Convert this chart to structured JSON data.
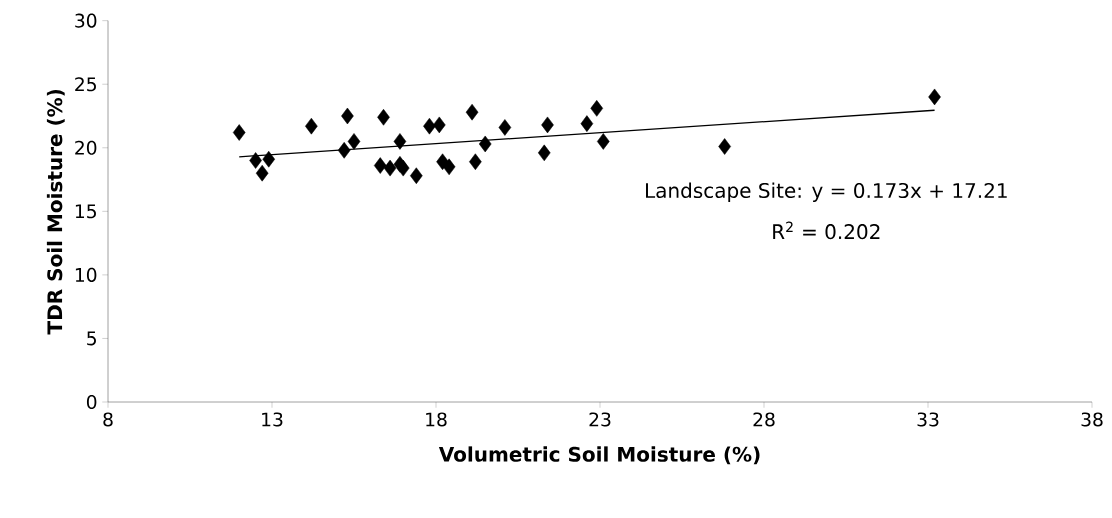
{
  "chart_data": {
    "type": "scatter",
    "xlabel": "Volumetric Soil Moisture (%)",
    "ylabel": "TDR Soil Moisture (%)",
    "xlim": [
      8,
      38
    ],
    "ylim": [
      0,
      30
    ],
    "xticks": [
      8,
      13,
      18,
      23,
      28,
      33,
      38
    ],
    "yticks": [
      0,
      5,
      10,
      15,
      20,
      25,
      30
    ],
    "marker": "diamond",
    "annotations": [
      "Landscape Site: y = 0.173x + 17.21",
      "R$^{2}$ = 0.202"
    ],
    "series": [
      {
        "color": "#000000",
        "x": [
          12.0,
          12.5,
          12.7,
          12.9,
          14.2,
          15.2,
          15.3,
          15.5,
          16.3,
          16.4,
          16.6,
          16.9,
          16.9,
          17.0,
          17.4,
          17.8,
          18.1,
          18.2,
          18.4,
          19.1,
          19.2,
          19.5,
          20.1,
          21.3,
          21.4,
          22.6,
          22.9,
          23.1,
          26.8,
          33.2
        ],
        "values": [
          21.2,
          19.0,
          18.0,
          19.1,
          21.7,
          19.8,
          22.5,
          20.5,
          18.6,
          22.4,
          18.4,
          20.5,
          18.7,
          18.4,
          17.8,
          21.7,
          21.8,
          18.9,
          18.5,
          22.8,
          18.9,
          20.3,
          21.6,
          19.6,
          21.8,
          21.9,
          23.1,
          20.5,
          20.1,
          24.0
        ]
      },
      {
        "type": "line",
        "marker": "none",
        "color": "#000000",
        "x": [
          12.0,
          33.2
        ],
        "values": [
          19.29,
          22.95
        ]
      }
    ]
  }
}
